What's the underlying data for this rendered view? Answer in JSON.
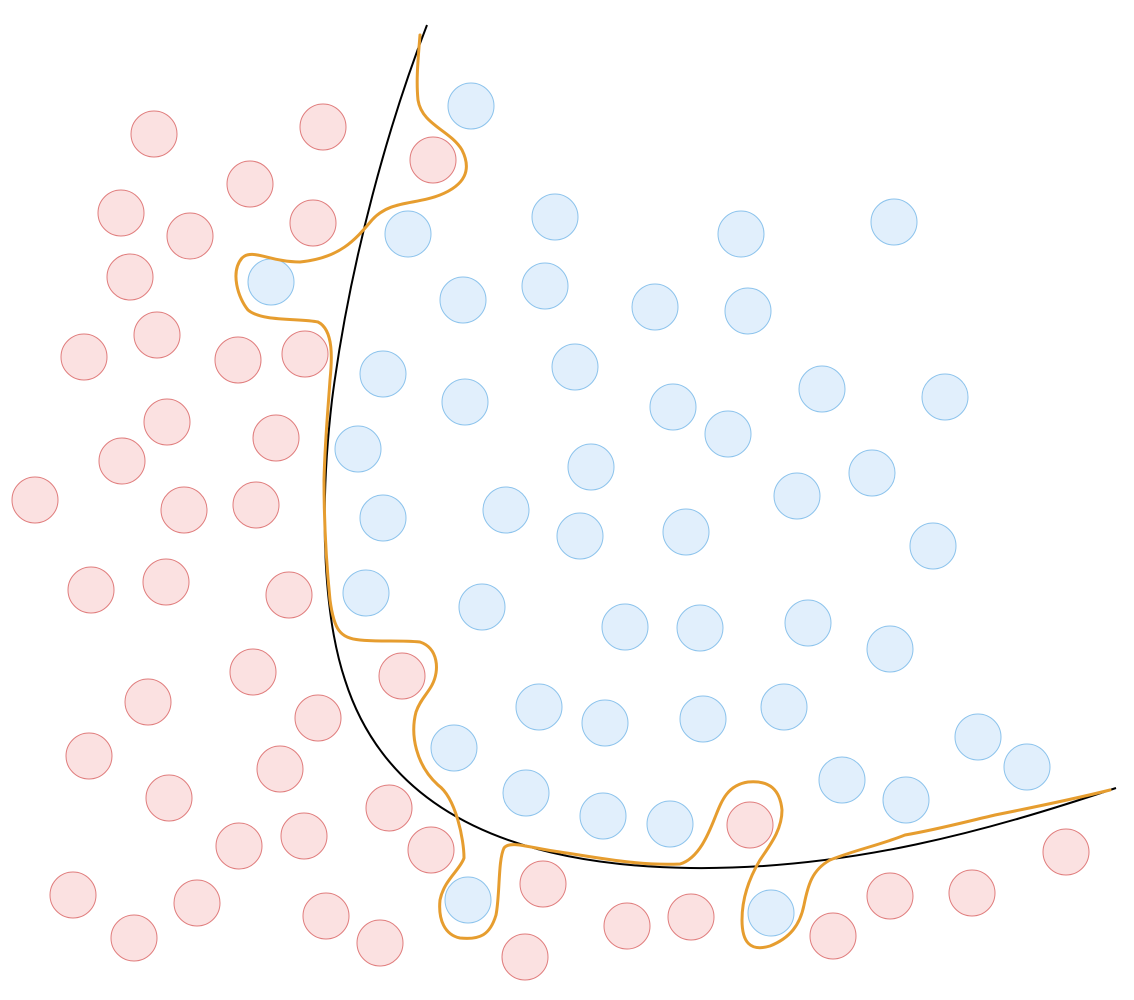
{
  "diagram": {
    "type": "classification-boundary",
    "title": "",
    "colors": {
      "class_a_fill": "#fbe1e1",
      "class_a_stroke": "#e07d7d",
      "class_b_fill": "#e1effc",
      "class_b_stroke": "#8cc3ec",
      "smooth_boundary": "#000000",
      "overfit_boundary": "#e69d2f"
    },
    "classes": [
      {
        "id": "class-a",
        "label": ""
      },
      {
        "id": "class-b",
        "label": ""
      }
    ],
    "boundaries": [
      {
        "id": "smooth-decision-boundary",
        "kind": "smooth",
        "label": ""
      },
      {
        "id": "overfit-decision-boundary",
        "kind": "overfit",
        "label": ""
      }
    ]
  }
}
